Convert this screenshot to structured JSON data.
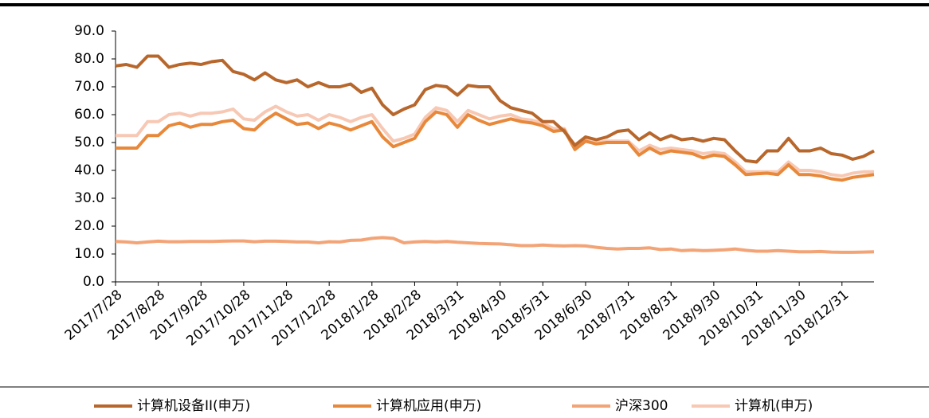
{
  "chart_data": {
    "type": "line",
    "categories": [
      "2017/7/28",
      null,
      null,
      null,
      "2017/8/28",
      null,
      null,
      null,
      "2017/9/28",
      null,
      null,
      null,
      "2017/10/28",
      null,
      null,
      null,
      "2017/11/28",
      null,
      null,
      null,
      "2017/12/28",
      null,
      null,
      null,
      "2018/1/28",
      null,
      null,
      null,
      "2018/2/28",
      null,
      null,
      null,
      "2018/3/31",
      null,
      null,
      null,
      "2018/4/30",
      null,
      null,
      null,
      "2018/5/31",
      null,
      null,
      null,
      "2018/6/30",
      null,
      null,
      null,
      "2018/7/31",
      null,
      null,
      null,
      "2018/8/31",
      null,
      null,
      null,
      "2018/9/30",
      null,
      null,
      null,
      "2018/10/31",
      null,
      null,
      null,
      "2018/11/30",
      null,
      null,
      null,
      "2018/12/31",
      null,
      null,
      null
    ],
    "series": [
      {
        "name": "计算机设备II(申万)",
        "color": "#b8672c",
        "values": [
          77.5,
          78,
          77,
          81,
          81,
          77,
          78,
          78.5,
          78,
          79,
          79.5,
          75.5,
          74.5,
          72.5,
          75,
          72.5,
          71.5,
          72.5,
          70,
          71.5,
          70,
          70,
          71,
          68,
          69.5,
          63.5,
          60,
          62,
          63.5,
          69,
          70.5,
          70,
          67,
          70.5,
          70,
          70,
          65,
          62.5,
          61.5,
          60.5,
          57.5,
          57.5,
          54,
          49,
          52,
          51,
          52,
          54,
          54.5,
          51,
          53.5,
          51,
          52.5,
          51,
          51.5,
          50.5,
          51.5,
          51,
          47,
          43.5,
          43,
          47,
          47,
          51.5,
          47,
          47,
          48,
          46,
          45.5,
          44,
          45,
          47
        ]
      },
      {
        "name": "计算机应用(申万)",
        "color": "#e8883a",
        "values": [
          48,
          48,
          48,
          52.5,
          52.5,
          56,
          57,
          55.5,
          56.5,
          56.5,
          57.5,
          58,
          55,
          54.5,
          58,
          60.5,
          58.5,
          56.5,
          57,
          55,
          57,
          56,
          54.5,
          56,
          57.5,
          52,
          48.5,
          50,
          51.5,
          57.5,
          61,
          60,
          55.5,
          60,
          58,
          56.5,
          57.5,
          58.5,
          57.5,
          57,
          56,
          54,
          54.5,
          47.5,
          50.5,
          49.5,
          50,
          50,
          50,
          45.5,
          48,
          46,
          47,
          46.5,
          46,
          44.5,
          45.5,
          45,
          42,
          38.5,
          38.8,
          39,
          38.5,
          42,
          38.5,
          38.5,
          38,
          37,
          36.5,
          37.5,
          38,
          38.5
        ]
      },
      {
        "name": "沪深300",
        "color": "#f3a477",
        "values": [
          14.5,
          14.3,
          14,
          14.3,
          14.6,
          14.4,
          14.4,
          14.5,
          14.5,
          14.5,
          14.6,
          14.7,
          14.7,
          14.4,
          14.6,
          14.6,
          14.5,
          14.3,
          14.3,
          14,
          14.4,
          14.3,
          14.9,
          15,
          15.6,
          15.9,
          15.6,
          14,
          14.3,
          14.5,
          14.3,
          14.5,
          14.2,
          14,
          13.8,
          13.7,
          13.6,
          13.3,
          13,
          13,
          13.2,
          13,
          12.9,
          13,
          12.9,
          12.4,
          12,
          11.8,
          12,
          12,
          12.2,
          11.6,
          11.8,
          11.2,
          11.4,
          11.2,
          11.3,
          11.5,
          11.8,
          11.3,
          11,
          11,
          11.2,
          11,
          10.8,
          10.8,
          10.9,
          10.7,
          10.6,
          10.6,
          10.7,
          10.8
        ]
      },
      {
        "name": "计算机(申万)",
        "color": "#f7c8b4",
        "values": [
          52.5,
          52.5,
          52.5,
          57.5,
          57.5,
          60,
          60.5,
          59.5,
          60.5,
          60.5,
          61,
          62,
          58.5,
          58,
          61,
          63,
          61,
          59.5,
          60,
          58,
          60,
          59,
          57.5,
          59,
          60,
          55,
          50.5,
          51.5,
          53,
          59,
          62.5,
          61.5,
          57.5,
          61.5,
          60,
          58.5,
          59.5,
          60,
          58.5,
          58,
          57,
          55,
          55,
          48,
          51,
          50,
          50.5,
          50.5,
          50.5,
          47,
          49,
          47.5,
          48,
          47.5,
          47,
          46,
          46.5,
          46,
          43,
          39.5,
          39.5,
          39.5,
          39.5,
          43,
          40,
          40,
          39.5,
          38.5,
          38,
          39,
          39.5,
          39.5
        ]
      }
    ],
    "ylim": [
      0,
      90
    ],
    "yticks": [
      {
        "value": 0,
        "label": "0.0"
      },
      {
        "value": 10,
        "label": "10.0"
      },
      {
        "value": 20,
        "label": "20.0"
      },
      {
        "value": 30,
        "label": "30.0"
      },
      {
        "value": 40,
        "label": "40.0"
      },
      {
        "value": 50,
        "label": "50.0"
      },
      {
        "value": 60,
        "label": "60.0"
      },
      {
        "value": 70,
        "label": "70.0"
      },
      {
        "value": 80,
        "label": "80.0"
      },
      {
        "value": 90,
        "label": "90.0"
      }
    ],
    "grid": false,
    "legend": "bottom"
  }
}
